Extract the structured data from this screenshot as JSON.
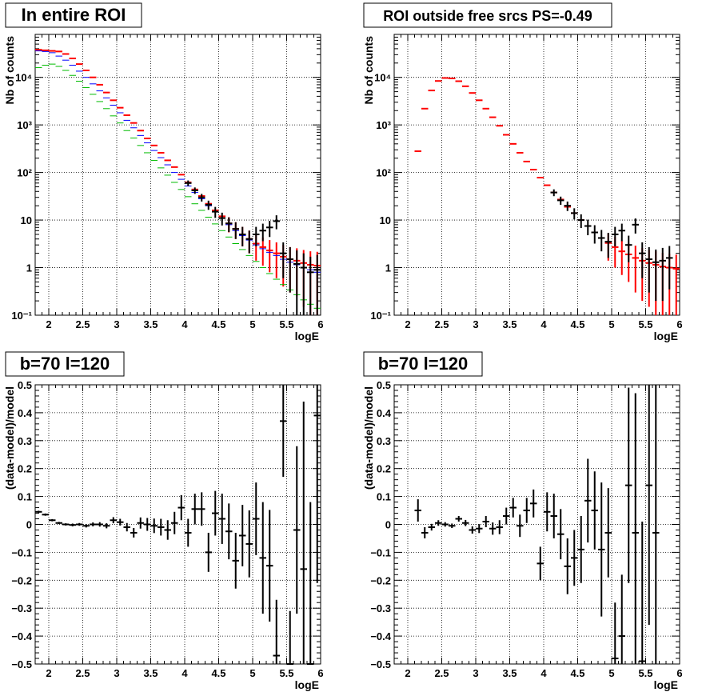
{
  "chart_data": [
    {
      "type": "scatter",
      "title": "In entire ROI",
      "xlabel": "logE",
      "ylabel": "Nb of counts",
      "xlim": [
        1.8,
        6.0
      ],
      "ylim": [
        0.1,
        80000
      ],
      "yscale": "log",
      "grid": true,
      "xticks": [
        "2",
        "2.5",
        "3",
        "3.5",
        "4",
        "4.5",
        "5",
        "5.5",
        "6"
      ],
      "yticks": [
        "10⁻¹",
        "1",
        "10",
        "10²",
        "10³",
        "10⁴"
      ],
      "series": [
        {
          "color": "#ff0000",
          "x": [
            1.85,
            1.95,
            2.05,
            2.15,
            2.25,
            2.35,
            2.45,
            2.55,
            2.65,
            2.75,
            2.85,
            2.95,
            3.05,
            3.15,
            3.25,
            3.35,
            3.45,
            3.55,
            3.65,
            3.75,
            3.85,
            3.95,
            4.05,
            4.15,
            4.25,
            4.35,
            4.45,
            4.55,
            4.65,
            4.75,
            4.85,
            4.95,
            5.05,
            5.15,
            5.25,
            5.35,
            5.45,
            5.55,
            5.65,
            5.75,
            5.85,
            5.95
          ],
          "y": [
            38000,
            37000,
            36000,
            35000,
            31000,
            25000,
            19000,
            14000,
            10000,
            7000,
            4800,
            3300,
            2300,
            1600,
            1100,
            760,
            520,
            370,
            260,
            180,
            130,
            90,
            62,
            44,
            32,
            22,
            16,
            12,
            8.5,
            6.5,
            5,
            4,
            3.2,
            2.7,
            2.3,
            2,
            1.7,
            1.5,
            1.4,
            1.25,
            1.15,
            1.1
          ],
          "err": [
            0,
            0,
            0,
            0,
            0,
            0,
            0,
            0,
            0,
            0,
            0,
            0,
            0,
            0,
            0,
            0,
            0,
            0,
            0,
            0,
            0,
            0,
            0,
            0,
            0,
            0,
            0,
            0,
            3,
            2.5,
            2.2,
            2,
            1.8,
            1.6,
            1.5,
            1.4,
            1.3,
            1.2,
            1.15,
            1.1,
            1.05,
            1.05
          ]
        },
        {
          "color": "#0000ff",
          "x": [
            1.85,
            1.95,
            2.05,
            2.15,
            2.25,
            2.35,
            2.45,
            2.55,
            2.65,
            2.75,
            2.85,
            2.95,
            3.05,
            3.15,
            3.25,
            3.35,
            3.45,
            3.55,
            3.65,
            3.75,
            3.85,
            3.95,
            4.05,
            4.15,
            4.25,
            4.35,
            4.45,
            4.55,
            4.65,
            4.75,
            4.85,
            4.95,
            5.05,
            5.15,
            5.25,
            5.35,
            5.45,
            5.55,
            5.65,
            5.75,
            5.85,
            5.95
          ],
          "y": [
            36000,
            35000,
            33000,
            28000,
            23000,
            18000,
            13500,
            10000,
            7300,
            5200,
            3700,
            2600,
            1800,
            1250,
            870,
            600,
            420,
            290,
            205,
            145,
            100,
            72,
            52,
            38,
            28,
            20,
            15,
            11,
            8,
            6,
            4.7,
            3.8,
            3,
            2.5,
            2.1,
            1.8,
            1.5,
            1.3,
            1.15,
            1,
            0.9,
            0.8
          ],
          "err": [
            0,
            0,
            0,
            0,
            0,
            0,
            0,
            0,
            0,
            0,
            0,
            0,
            0,
            0,
            0,
            0,
            0,
            0,
            0,
            0,
            0,
            0,
            0,
            0,
            0,
            0,
            0,
            0,
            0,
            0,
            0,
            0,
            0,
            0,
            0,
            0,
            0,
            0,
            0,
            0,
            0,
            0
          ]
        },
        {
          "color": "#00bb00",
          "x": [
            1.85,
            1.95,
            2.05,
            2.15,
            2.25,
            2.35,
            2.45,
            2.55,
            2.65,
            2.75,
            2.85,
            2.95,
            3.05,
            3.15,
            3.25,
            3.35,
            3.45,
            3.55,
            3.65,
            3.75,
            3.85,
            3.95,
            4.05,
            4.15,
            4.25,
            4.35,
            4.45,
            4.55,
            4.65,
            4.75,
            4.85,
            4.95,
            5.05,
            5.15,
            5.25,
            5.35,
            5.45,
            5.55,
            5.65,
            5.75,
            5.85,
            5.95
          ],
          "y": [
            16000,
            18000,
            19000,
            17000,
            14000,
            11000,
            8300,
            6100,
            4400,
            3100,
            2200,
            1550,
            1100,
            760,
            530,
            370,
            260,
            180,
            125,
            88,
            62,
            44,
            31,
            22,
            16,
            11.5,
            8.3,
            6,
            4.4,
            3.2,
            2.4,
            1.8,
            1.35,
            1,
            0.75,
            0.57,
            0.44,
            0.34,
            0.27,
            0.21,
            0.17,
            0.14
          ],
          "err": [
            0,
            0,
            0,
            0,
            0,
            0,
            0,
            0,
            0,
            0,
            0,
            0,
            0,
            0,
            0,
            0,
            0,
            0,
            0,
            0,
            0,
            0,
            0,
            0,
            0,
            0,
            0,
            0,
            0,
            0,
            0,
            0,
            0,
            0,
            0,
            0,
            0,
            0,
            0,
            0,
            0,
            0
          ]
        },
        {
          "color": "#000000",
          "x": [
            4.05,
            4.15,
            4.25,
            4.35,
            4.45,
            4.55,
            4.65,
            4.75,
            4.85,
            4.95,
            5.05,
            5.15,
            5.25,
            5.35,
            5.45,
            5.55,
            5.65,
            5.75,
            5.85,
            5.95
          ],
          "y": [
            60,
            42,
            30,
            21,
            15,
            11,
            8.5,
            6.5,
            5,
            4,
            5,
            6,
            7,
            9.5,
            2,
            1.5,
            1.2,
            1,
            0.8,
            0.9
          ],
          "err": [
            8,
            6.5,
            5.5,
            4.6,
            3.9,
            3.3,
            2.9,
            2.5,
            2.2,
            2,
            2.2,
            2.4,
            2.6,
            3.1,
            1.4,
            1.2,
            1.1,
            1,
            0.9,
            0.95
          ]
        }
      ]
    },
    {
      "type": "scatter",
      "title": "ROI outside free srcs PS=-0.49",
      "xlabel": "logE",
      "ylabel": "Nb of counts",
      "xlim": [
        1.8,
        6.0
      ],
      "ylim": [
        0.1,
        80000
      ],
      "yscale": "log",
      "grid": true,
      "xticks": [
        "2",
        "2.5",
        "3",
        "3.5",
        "4",
        "4.5",
        "5",
        "5.5",
        "6"
      ],
      "yticks": [
        "10⁻¹",
        "1",
        "10",
        "10²",
        "10³",
        "10⁴"
      ],
      "series": [
        {
          "color": "#ff0000",
          "x": [
            2.15,
            2.25,
            2.35,
            2.45,
            2.55,
            2.65,
            2.75,
            2.85,
            2.95,
            3.05,
            3.15,
            3.25,
            3.35,
            3.45,
            3.55,
            3.65,
            3.75,
            3.85,
            3.95,
            4.05,
            4.15,
            4.25,
            4.35,
            4.45,
            4.55,
            4.65,
            4.75,
            4.85,
            4.95,
            5.05,
            5.15,
            5.25,
            5.35,
            5.45,
            5.55,
            5.65,
            5.75,
            5.85,
            5.95
          ],
          "y": [
            280,
            2200,
            5300,
            8400,
            9700,
            9500,
            8300,
            6500,
            4700,
            3300,
            2200,
            1450,
            960,
            620,
            400,
            260,
            170,
            115,
            78,
            54,
            38,
            27,
            19,
            14,
            10,
            7.5,
            5.5,
            4.2,
            3.3,
            2.7,
            2.2,
            1.9,
            1.6,
            1.4,
            1.25,
            1.15,
            1.05,
            1,
            0.95
          ],
          "err": [
            0,
            0,
            0,
            0,
            0,
            0,
            0,
            0,
            0,
            0,
            0,
            0,
            0,
            0,
            0,
            0,
            0,
            0,
            0,
            0,
            0,
            0,
            0,
            0,
            0,
            0,
            0,
            0,
            1.9,
            1.7,
            1.5,
            1.4,
            1.3,
            1.2,
            1.1,
            1.05,
            1,
            0.97,
            0.93
          ]
        },
        {
          "color": "#000000",
          "x": [
            4.15,
            4.25,
            4.35,
            4.45,
            4.55,
            4.65,
            4.75,
            4.85,
            4.95,
            5.05,
            5.15,
            5.25,
            5.35,
            5.45,
            5.55,
            5.65,
            5.75,
            5.85
          ],
          "y": [
            38,
            26,
            20,
            14,
            10,
            7.5,
            5.5,
            4.2,
            3.5,
            5,
            6,
            3,
            8,
            2,
            1.5,
            1.3,
            1.4,
            1.6
          ],
          "err": [
            6.2,
            5.1,
            4.5,
            3.7,
            3.2,
            2.7,
            2.3,
            2,
            1.9,
            2.2,
            2.4,
            1.7,
            2.8,
            1.4,
            1.2,
            1.1,
            1.2,
            1.25
          ]
        }
      ]
    },
    {
      "type": "scatter",
      "title": "b=70 l=120",
      "xlabel": "logE",
      "ylabel": "(data-model)/model",
      "xlim": [
        1.8,
        6.0
      ],
      "ylim": [
        -0.5,
        0.5
      ],
      "grid": true,
      "xticks": [
        "2",
        "2.5",
        "3",
        "3.5",
        "4",
        "4.5",
        "5",
        "5.5",
        "6"
      ],
      "yticks": [
        "−0.5",
        "−0.4",
        "−0.3",
        "−0.2",
        "−0.1",
        "0",
        "0.1",
        "0.2",
        "0.3",
        "0.4",
        "0.5"
      ],
      "series": [
        {
          "color": "#000000",
          "x": [
            1.85,
            1.95,
            2.05,
            2.15,
            2.25,
            2.35,
            2.45,
            2.55,
            2.65,
            2.75,
            2.85,
            2.95,
            3.05,
            3.15,
            3.25,
            3.35,
            3.45,
            3.55,
            3.65,
            3.75,
            3.85,
            3.95,
            4.05,
            4.15,
            4.25,
            4.35,
            4.45,
            4.55,
            4.65,
            4.75,
            4.85,
            4.95,
            5.05,
            5.15,
            5.25,
            5.35,
            5.45,
            5.55,
            5.65,
            5.75,
            5.85,
            5.95
          ],
          "y": [
            0.045,
            0.035,
            0.015,
            0.005,
            0,
            -0.002,
            0,
            -0.005,
            0,
            0,
            -0.005,
            0.015,
            0.008,
            -0.01,
            -0.03,
            0.005,
            0,
            -0.005,
            -0.01,
            -0.02,
            0.005,
            0.06,
            -0.03,
            0.055,
            0.055,
            -0.1,
            0.04,
            0.02,
            -0.025,
            -0.13,
            -0.04,
            -0.07,
            0.02,
            -0.12,
            -0.148,
            -0.47,
            0.37,
            -0.51,
            -0.02,
            -0.16,
            -0.52,
            0.39
          ],
          "err": [
            0.004,
            0.004,
            0.004,
            0.004,
            0.004,
            0.005,
            0.005,
            0.006,
            0.007,
            0.008,
            0.009,
            0.011,
            0.012,
            0.015,
            0.017,
            0.02,
            0.023,
            0.026,
            0.03,
            0.035,
            0.04,
            0.045,
            0.05,
            0.055,
            0.06,
            0.07,
            0.08,
            0.09,
            0.1,
            0.1,
            0.11,
            0.12,
            0.13,
            0.2,
            0.2,
            0.2,
            0.2,
            0.2,
            0.3,
            0.6,
            0.6,
            0.6
          ]
        }
      ]
    },
    {
      "type": "scatter",
      "title": "b=70 l=120",
      "xlabel": "logE",
      "ylabel": "(data-model)/model",
      "xlim": [
        1.8,
        6.0
      ],
      "ylim": [
        -0.5,
        0.5
      ],
      "grid": true,
      "xticks": [
        "2",
        "2.5",
        "3",
        "3.5",
        "4",
        "4.5",
        "5",
        "5.5",
        "6"
      ],
      "yticks": [
        "−0.5",
        "−0.4",
        "−0.3",
        "−0.2",
        "−0.1",
        "0",
        "0.1",
        "0.2",
        "0.3",
        "0.4",
        "0.5"
      ],
      "series": [
        {
          "color": "#000000",
          "x": [
            2.15,
            2.25,
            2.35,
            2.45,
            2.55,
            2.65,
            2.75,
            2.85,
            2.95,
            3.05,
            3.15,
            3.25,
            3.35,
            3.45,
            3.55,
            3.65,
            3.75,
            3.85,
            3.95,
            4.05,
            4.15,
            4.25,
            4.35,
            4.45,
            4.55,
            4.65,
            4.75,
            4.85,
            4.95,
            5.05,
            5.15,
            5.25,
            5.35,
            5.45,
            5.55,
            5.65
          ],
          "y": [
            0.05,
            -0.03,
            -0.01,
            0.005,
            0,
            -0.005,
            0.02,
            0.005,
            -0.02,
            -0.015,
            0.01,
            -0.015,
            -0.01,
            0.03,
            0.06,
            -0.005,
            0.05,
            0.075,
            -0.14,
            0.045,
            0.03,
            -0.035,
            -0.15,
            -0.12,
            -0.09,
            0.085,
            0.05,
            -0.09,
            -0.03,
            -0.48,
            -0.4,
            0.14,
            -0.03,
            -0.49,
            0.14,
            -0.03
          ],
          "err": [
            0.04,
            0.02,
            0.012,
            0.01,
            0.008,
            0.008,
            0.01,
            0.011,
            0.013,
            0.016,
            0.02,
            0.022,
            0.025,
            0.03,
            0.035,
            0.04,
            0.045,
            0.05,
            0.06,
            0.07,
            0.08,
            0.09,
            0.1,
            0.1,
            0.12,
            0.15,
            0.14,
            0.24,
            0.16,
            0.2,
            0.22,
            0.35,
            0.5,
            0.5,
            0.5,
            0.6
          ]
        }
      ]
    }
  ]
}
